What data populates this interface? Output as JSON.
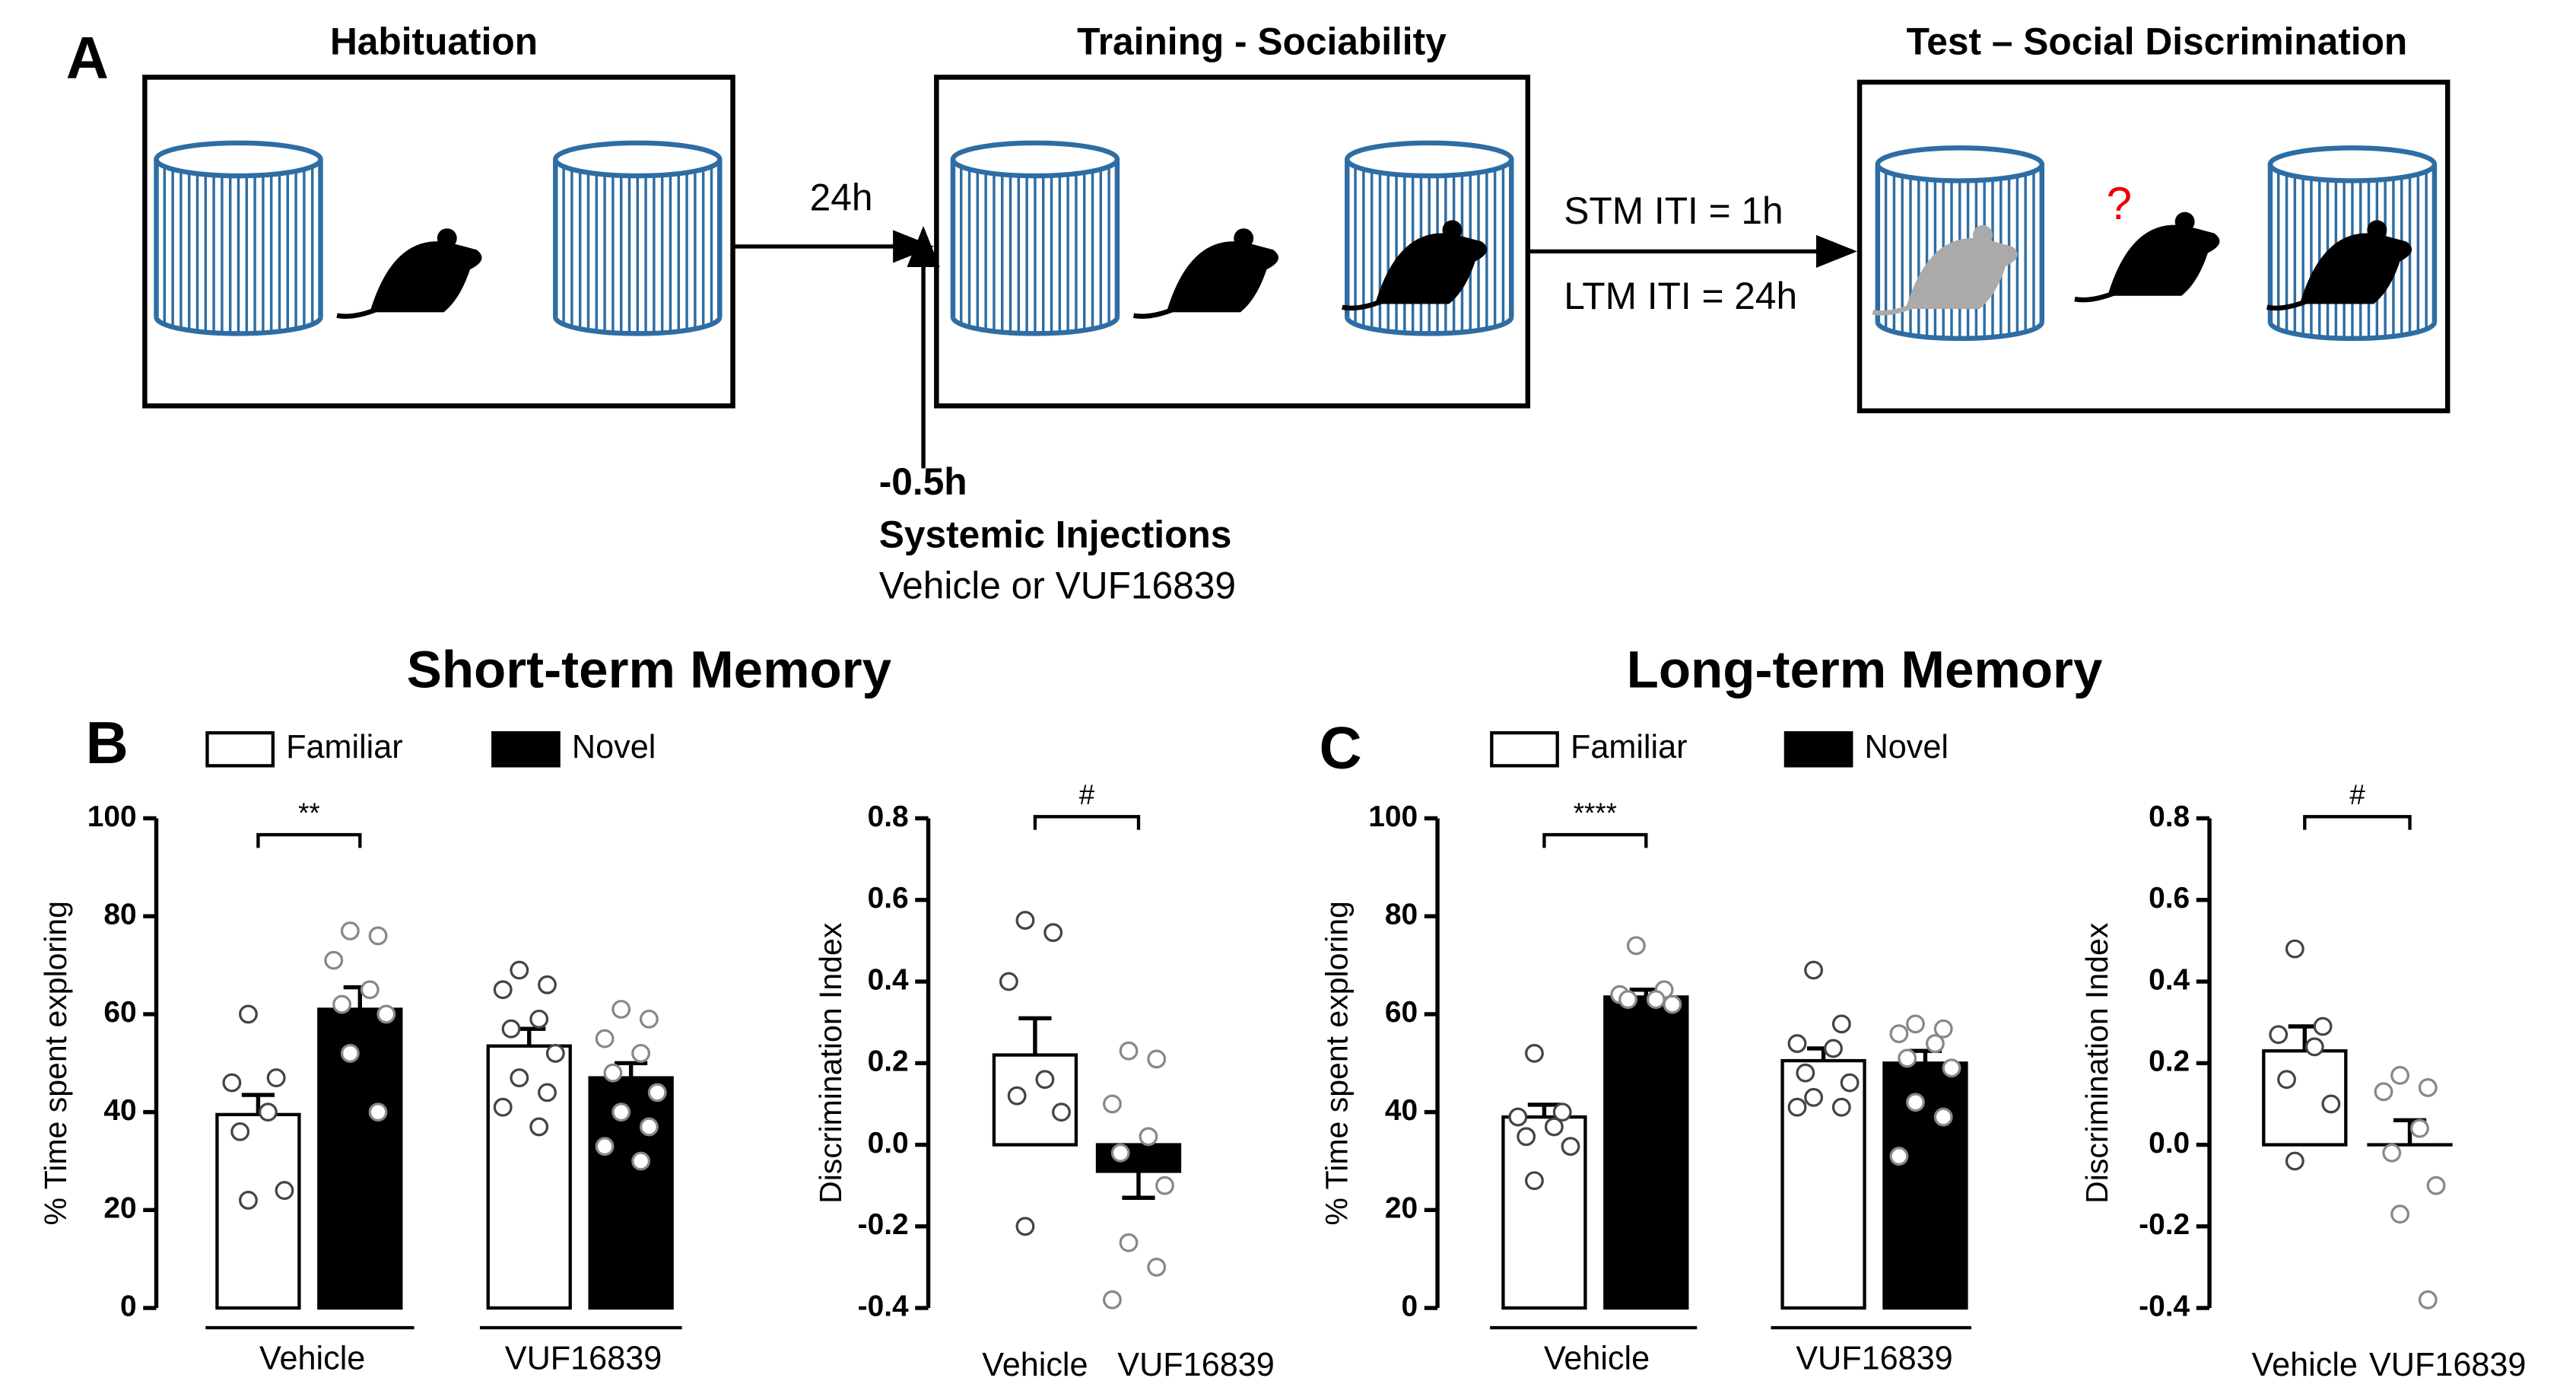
{
  "panel_labels": [
    "A",
    "B",
    "C"
  ],
  "diagram": {
    "stages": [
      "Habituation",
      "Training - Sociability",
      "Test – Social Discrimination"
    ],
    "delay": "24h",
    "iti": [
      "STM ITI  = 1h",
      "LTM ITI  = 24h"
    ],
    "question": "?",
    "injection": {
      "time": "-0.5h",
      "title": "Systemic Injections",
      "text": "Vehicle or VUF16839"
    }
  },
  "section_titles": [
    "Short-term Memory",
    "Long-term Memory"
  ],
  "chart_data": [
    {
      "type": "bar",
      "ylabel": "% Time spent exploring",
      "categories": [
        "Vehicle",
        "VUF16839"
      ],
      "annotation": "**",
      "ylim": [
        0,
        100
      ],
      "yticks": [
        0,
        20,
        40,
        60,
        80,
        100
      ],
      "series": [
        {
          "name": "Familiar",
          "color": "#ffffff",
          "values": [
            39.5,
            53.5
          ],
          "errors": [
            4,
            3.5
          ],
          "points": [
            [
              60,
              47,
              46,
              40,
              36,
              24,
              22
            ],
            [
              69,
              66,
              65,
              59,
              57,
              52,
              47,
              44,
              41,
              37
            ]
          ]
        },
        {
          "name": "Novel",
          "color": "#000000",
          "values": [
            61,
            47
          ],
          "errors": [
            4.5,
            3
          ],
          "points": [
            [
              77,
              76,
              71,
              65,
              62,
              60,
              52,
              40
            ],
            [
              61,
              59,
              55,
              52,
              48,
              44,
              40,
              37,
              33,
              30
            ]
          ]
        }
      ]
    },
    {
      "type": "bar",
      "ylabel": "Discrimination Index",
      "categories": [
        "Vehicle",
        "VUF16839"
      ],
      "annotation": "#",
      "ylim": [
        -0.4,
        0.8
      ],
      "yticks": [
        -0.4,
        -0.2,
        {
          "value": 0,
          "label": "0.0"
        },
        0.2,
        0.4,
        0.6,
        0.8
      ],
      "colors": [
        "#ffffff",
        "#000000"
      ],
      "values": [
        0.22,
        -0.065
      ],
      "errors": [
        0.09,
        0.065
      ],
      "points": [
        [
          0.55,
          0.52,
          0.4,
          0.16,
          0.12,
          0.08,
          -0.2
        ],
        [
          0.23,
          0.21,
          0.1,
          0.02,
          -0.02,
          -0.1,
          -0.24,
          -0.3,
          -0.38
        ]
      ]
    },
    {
      "type": "bar",
      "ylabel": "% Time spent exploring",
      "categories": [
        "Vehicle",
        "VUF16839"
      ],
      "annotation": "****",
      "ylim": [
        0,
        100
      ],
      "yticks": [
        0,
        20,
        40,
        60,
        80,
        100
      ],
      "series": [
        {
          "name": "Familiar",
          "color": "#ffffff",
          "values": [
            39,
            50.5
          ],
          "errors": [
            2.5,
            2.5
          ],
          "points": [
            [
              52,
              40,
              39,
              37,
              35,
              33,
              26
            ],
            [
              69,
              58,
              54,
              53,
              48,
              46,
              43,
              41,
              41
            ]
          ]
        },
        {
          "name": "Novel",
          "color": "#000000",
          "values": [
            63.5,
            50
          ],
          "errors": [
            1.5,
            2.5
          ],
          "points": [
            [
              74,
              65,
              64,
              63,
              63,
              62
            ],
            [
              58,
              57,
              56,
              54,
              51,
              49,
              42,
              39,
              31
            ]
          ]
        }
      ]
    },
    {
      "type": "bar",
      "ylabel": "Discrimination Index",
      "categories": [
        "Vehicle",
        "VUF16839"
      ],
      "annotation": "#",
      "ylim": [
        -0.4,
        0.8
      ],
      "yticks": [
        -0.4,
        -0.2,
        {
          "value": 0,
          "label": "0.0"
        },
        0.2,
        0.4,
        0.6,
        0.8
      ],
      "colors": [
        "#ffffff",
        "#000000"
      ],
      "values": [
        0.23,
        0
      ],
      "errors": [
        0.06,
        0.06
      ],
      "points": [
        [
          0.48,
          0.29,
          0.27,
          0.24,
          0.16,
          0.1,
          -0.04
        ],
        [
          0.17,
          0.14,
          0.13,
          0.04,
          -0.02,
          -0.1,
          -0.17,
          -0.38
        ]
      ]
    }
  ]
}
